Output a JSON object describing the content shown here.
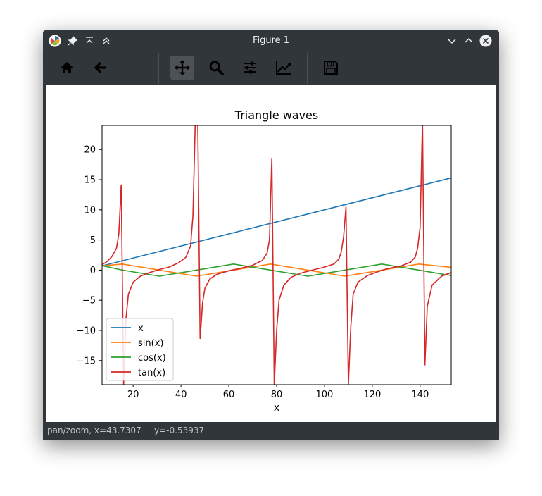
{
  "window": {
    "title": "Figure 1",
    "icons": [
      "app-logo-icon",
      "pin-icon",
      "keep-above-icon",
      "shade-icon",
      "minimize-icon",
      "maximize-icon",
      "close-icon"
    ]
  },
  "toolbar": {
    "tools": [
      {
        "name": "home-icon",
        "tooltip": "Home"
      },
      {
        "name": "back-icon",
        "tooltip": "Back"
      },
      {
        "name": "pan-icon",
        "tooltip": "Pan",
        "active": true
      },
      {
        "name": "zoom-icon",
        "tooltip": "Zoom"
      },
      {
        "name": "subplots-icon",
        "tooltip": "Configure subplots"
      },
      {
        "name": "edit-curves-icon",
        "tooltip": "Edit axis, curve and image parameters"
      },
      {
        "name": "save-icon",
        "tooltip": "Save"
      }
    ]
  },
  "status": {
    "mode_x": "pan/zoom, x=43.7307",
    "y": "y=-0.53937"
  },
  "chart_data": {
    "type": "line",
    "title": "Triangle waves",
    "xlabel": "x",
    "ylabel": "",
    "xlim": [
      7,
      153
    ],
    "ylim": [
      -19,
      24
    ],
    "xticks": [
      20,
      40,
      60,
      80,
      100,
      120,
      140
    ],
    "yticks": [
      20,
      15,
      10,
      5,
      0,
      -5,
      -10,
      -15
    ],
    "xtick_labels": [
      "20",
      "40",
      "60",
      "80",
      "100",
      "120",
      "140"
    ],
    "ytick_labels": [
      "20",
      "15",
      "10",
      "5",
      "0",
      "−5",
      "−10",
      "−15"
    ],
    "legend_position": "lower-left",
    "grid": false,
    "series": [
      {
        "name": "x",
        "color": "#1f77b4",
        "x": [
          7,
          153
        ],
        "y": [
          0.7,
          15.3
        ]
      },
      {
        "name": "sin(x)",
        "color": "#ff7f0e",
        "x": [
          7,
          15.5,
          31,
          46.5,
          62,
          77.5,
          93,
          108.5,
          124,
          139.5,
          153
        ],
        "y": [
          0.7,
          1.0,
          0.0,
          -1.0,
          0.0,
          1.0,
          0.0,
          -1.0,
          0.0,
          1.0,
          0.45
        ]
      },
      {
        "name": "cos(x)",
        "color": "#2ca02c",
        "x": [
          7,
          15.5,
          31,
          46.5,
          62,
          77.5,
          93,
          108.5,
          124,
          139.5,
          153
        ],
        "y": [
          0.75,
          0.0,
          -1.0,
          0.0,
          1.0,
          0.0,
          -1.0,
          0.0,
          1.0,
          0.0,
          -0.9
        ]
      },
      {
        "name": "tan(x)",
        "color": "#d62728",
        "x": [
          7,
          9,
          11,
          13,
          14,
          15,
          16,
          17,
          18,
          20,
          23,
          27,
          31,
          35,
          39,
          42,
          44,
          45,
          46,
          47,
          48,
          49,
          50,
          52,
          55,
          60,
          65,
          70,
          74,
          76,
          77,
          78,
          79,
          80,
          81,
          83,
          86,
          90,
          95,
          100,
          104,
          106,
          107,
          108,
          109,
          110,
          111,
          112,
          114,
          118,
          122,
          126,
          132,
          136,
          138,
          139,
          140,
          141,
          142,
          143,
          145,
          149,
          153
        ],
        "y": [
          0.9,
          1.4,
          2.2,
          3.6,
          6.0,
          14.2,
          -19,
          -8.0,
          -4.0,
          -2.0,
          -1.0,
          -0.4,
          0.1,
          0.5,
          1.2,
          2.1,
          4.0,
          9.0,
          25,
          25,
          -11.4,
          -5.5,
          -3.0,
          -1.5,
          -0.7,
          -0.1,
          0.3,
          0.8,
          1.6,
          2.8,
          5.0,
          18.6,
          -19,
          -10.0,
          -5.0,
          -2.5,
          -1.2,
          -0.5,
          0.0,
          0.5,
          1.0,
          1.8,
          3.0,
          5.5,
          10.5,
          -19,
          -9.5,
          -4.0,
          -2.0,
          -0.9,
          -0.3,
          0.2,
          0.7,
          1.3,
          2.2,
          3.7,
          7.2,
          25,
          -15.8,
          -6.0,
          -2.5,
          -1.0,
          -0.4
        ]
      }
    ]
  }
}
